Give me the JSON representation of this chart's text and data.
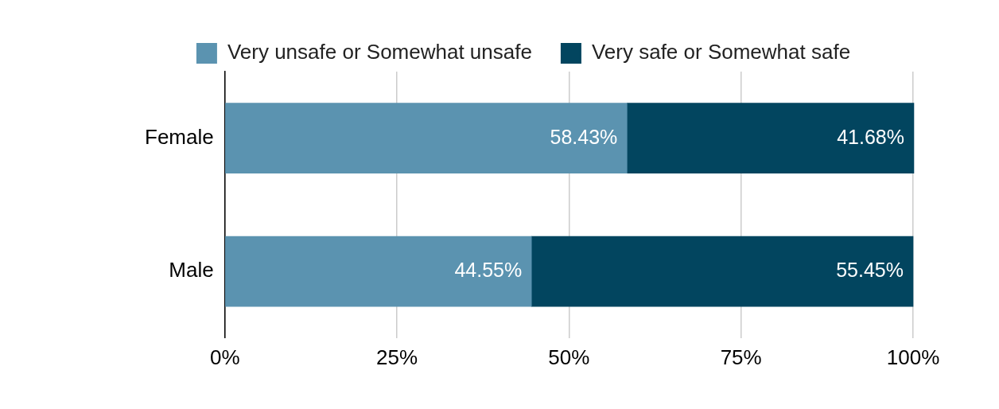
{
  "chart_data": {
    "type": "bar",
    "orientation": "horizontal",
    "stacked": true,
    "categories": [
      "Female",
      "Male"
    ],
    "series": [
      {
        "name": "Very unsafe or Somewhat unsafe",
        "color": "#5b93b0",
        "values": [
          58.43,
          44.55
        ],
        "value_labels": [
          "58.43%",
          "44.55%"
        ]
      },
      {
        "name": "Very safe or Somewhat safe",
        "color": "#02455f",
        "values": [
          41.68,
          55.45
        ],
        "value_labels": [
          "41.68%",
          "55.45%"
        ]
      }
    ],
    "xlim": [
      0,
      100
    ],
    "xticks": [
      {
        "value": 0,
        "label": "0%"
      },
      {
        "value": 25,
        "label": "25%"
      },
      {
        "value": 50,
        "label": "50%"
      },
      {
        "value": 75,
        "label": "75%"
      },
      {
        "value": 100,
        "label": "100%"
      }
    ],
    "grid": "x",
    "legend": "top"
  }
}
